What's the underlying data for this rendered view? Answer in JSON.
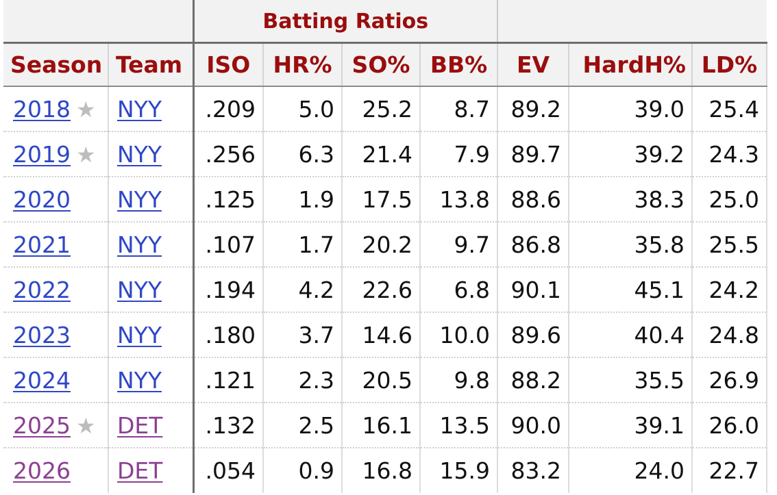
{
  "table": {
    "group_title": "Batting Ratios",
    "headers": [
      "Season",
      "Team",
      "ISO",
      "HR%",
      "SO%",
      "BB%",
      "EV",
      "HardH%",
      "LD%"
    ],
    "star_glyph": "★",
    "rows": [
      {
        "season": "2018",
        "star": true,
        "team": "NYY",
        "visited": false,
        "iso": ".209",
        "hr": "5.0",
        "so": "25.2",
        "bb": "8.7",
        "ev": "89.2",
        "hardh": "39.0",
        "ld": "25.4"
      },
      {
        "season": "2019",
        "star": true,
        "team": "NYY",
        "visited": false,
        "iso": ".256",
        "hr": "6.3",
        "so": "21.4",
        "bb": "7.9",
        "ev": "89.7",
        "hardh": "39.2",
        "ld": "24.3"
      },
      {
        "season": "2020",
        "star": false,
        "team": "NYY",
        "visited": false,
        "iso": ".125",
        "hr": "1.9",
        "so": "17.5",
        "bb": "13.8",
        "ev": "88.6",
        "hardh": "38.3",
        "ld": "25.0"
      },
      {
        "season": "2021",
        "star": false,
        "team": "NYY",
        "visited": false,
        "iso": ".107",
        "hr": "1.7",
        "so": "20.2",
        "bb": "9.7",
        "ev": "86.8",
        "hardh": "35.8",
        "ld": "25.5"
      },
      {
        "season": "2022",
        "star": false,
        "team": "NYY",
        "visited": false,
        "iso": ".194",
        "hr": "4.2",
        "so": "22.6",
        "bb": "6.8",
        "ev": "90.1",
        "hardh": "45.1",
        "ld": "24.2"
      },
      {
        "season": "2023",
        "star": false,
        "team": "NYY",
        "visited": false,
        "iso": ".180",
        "hr": "3.7",
        "so": "14.6",
        "bb": "10.0",
        "ev": "89.6",
        "hardh": "40.4",
        "ld": "24.8"
      },
      {
        "season": "2024",
        "star": false,
        "team": "NYY",
        "visited": false,
        "iso": ".121",
        "hr": "2.3",
        "so": "20.5",
        "bb": "9.8",
        "ev": "88.2",
        "hardh": "35.5",
        "ld": "26.9"
      },
      {
        "season": "2025",
        "star": true,
        "team": "DET",
        "visited": true,
        "iso": ".132",
        "hr": "2.5",
        "so": "16.1",
        "bb": "13.5",
        "ev": "90.0",
        "hardh": "39.1",
        "ld": "26.0"
      },
      {
        "season": "2026",
        "star": false,
        "team": "DET",
        "visited": true,
        "iso": ".054",
        "hr": "0.9",
        "so": "16.8",
        "bb": "15.9",
        "ev": "83.2",
        "hardh": "24.0",
        "ld": "22.7"
      }
    ]
  },
  "colors": {
    "header_text": "#9b0d0d",
    "link": "#2e47c6",
    "visited_link": "#8c3f93",
    "star": "#bdbdbd",
    "header_bg": "#f2f2f2"
  }
}
